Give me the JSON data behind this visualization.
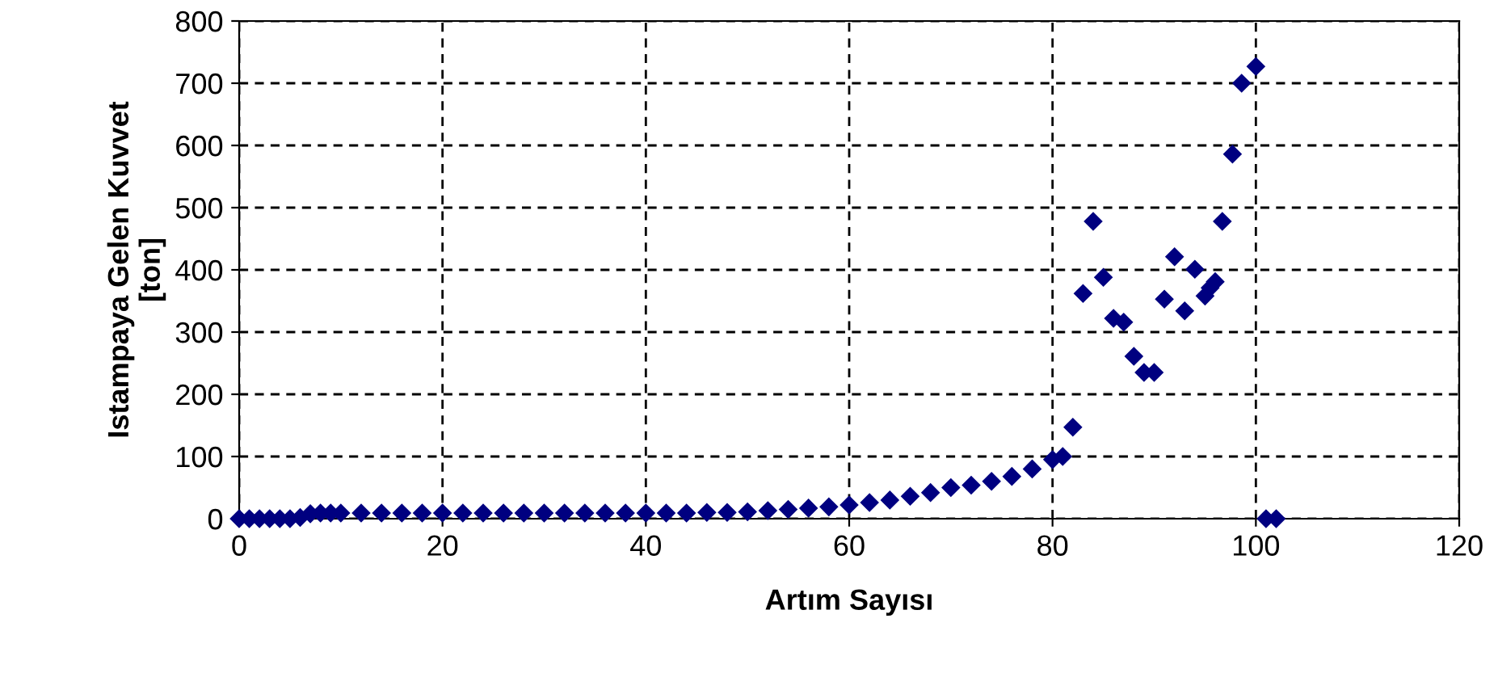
{
  "chart_data": {
    "type": "scatter",
    "xlabel": "Artım Sayısı",
    "ylabel": "Istampaya Gelen Kuvvet\n[ton]",
    "x": [
      0,
      1,
      2,
      3,
      4,
      5,
      6,
      7,
      8,
      9,
      10,
      12,
      14,
      16,
      18,
      20,
      22,
      24,
      26,
      28,
      30,
      32,
      34,
      36,
      38,
      40,
      42,
      44,
      46,
      48,
      50,
      52,
      54,
      56,
      58,
      60,
      62,
      64,
      66,
      68,
      70,
      72,
      74,
      76,
      78,
      80,
      81,
      82,
      83,
      84,
      85,
      86,
      87,
      88,
      89,
      90,
      91,
      92,
      93,
      94,
      95,
      95.5,
      96,
      96.7,
      97.7,
      98.6,
      100,
      101,
      102
    ],
    "series": [
      {
        "color": "#000080",
        "values": [
          0,
          0,
          0,
          0,
          0,
          0,
          2,
          8,
          9,
          9,
          9,
          9,
          9,
          9,
          9,
          9,
          9,
          9,
          9,
          9,
          9,
          9,
          9,
          9,
          9,
          9,
          9,
          9,
          10,
          10,
          11,
          13,
          15,
          17,
          19,
          22,
          26,
          30,
          36,
          42,
          50,
          54,
          60,
          68,
          80,
          95,
          100,
          147,
          362,
          478,
          388,
          322,
          316,
          261,
          235,
          235,
          353,
          421,
          334,
          401,
          358,
          371,
          381,
          478,
          586,
          700,
          727,
          0,
          0
        ]
      }
    ],
    "marker": "diamond",
    "xlim": [
      0,
      120
    ],
    "xticks": [
      0,
      20,
      40,
      60,
      80,
      100,
      120
    ],
    "ylim": [
      0,
      800
    ],
    "yticks": [
      0,
      100,
      200,
      300,
      400,
      500,
      600,
      700,
      800
    ],
    "grid": true
  }
}
